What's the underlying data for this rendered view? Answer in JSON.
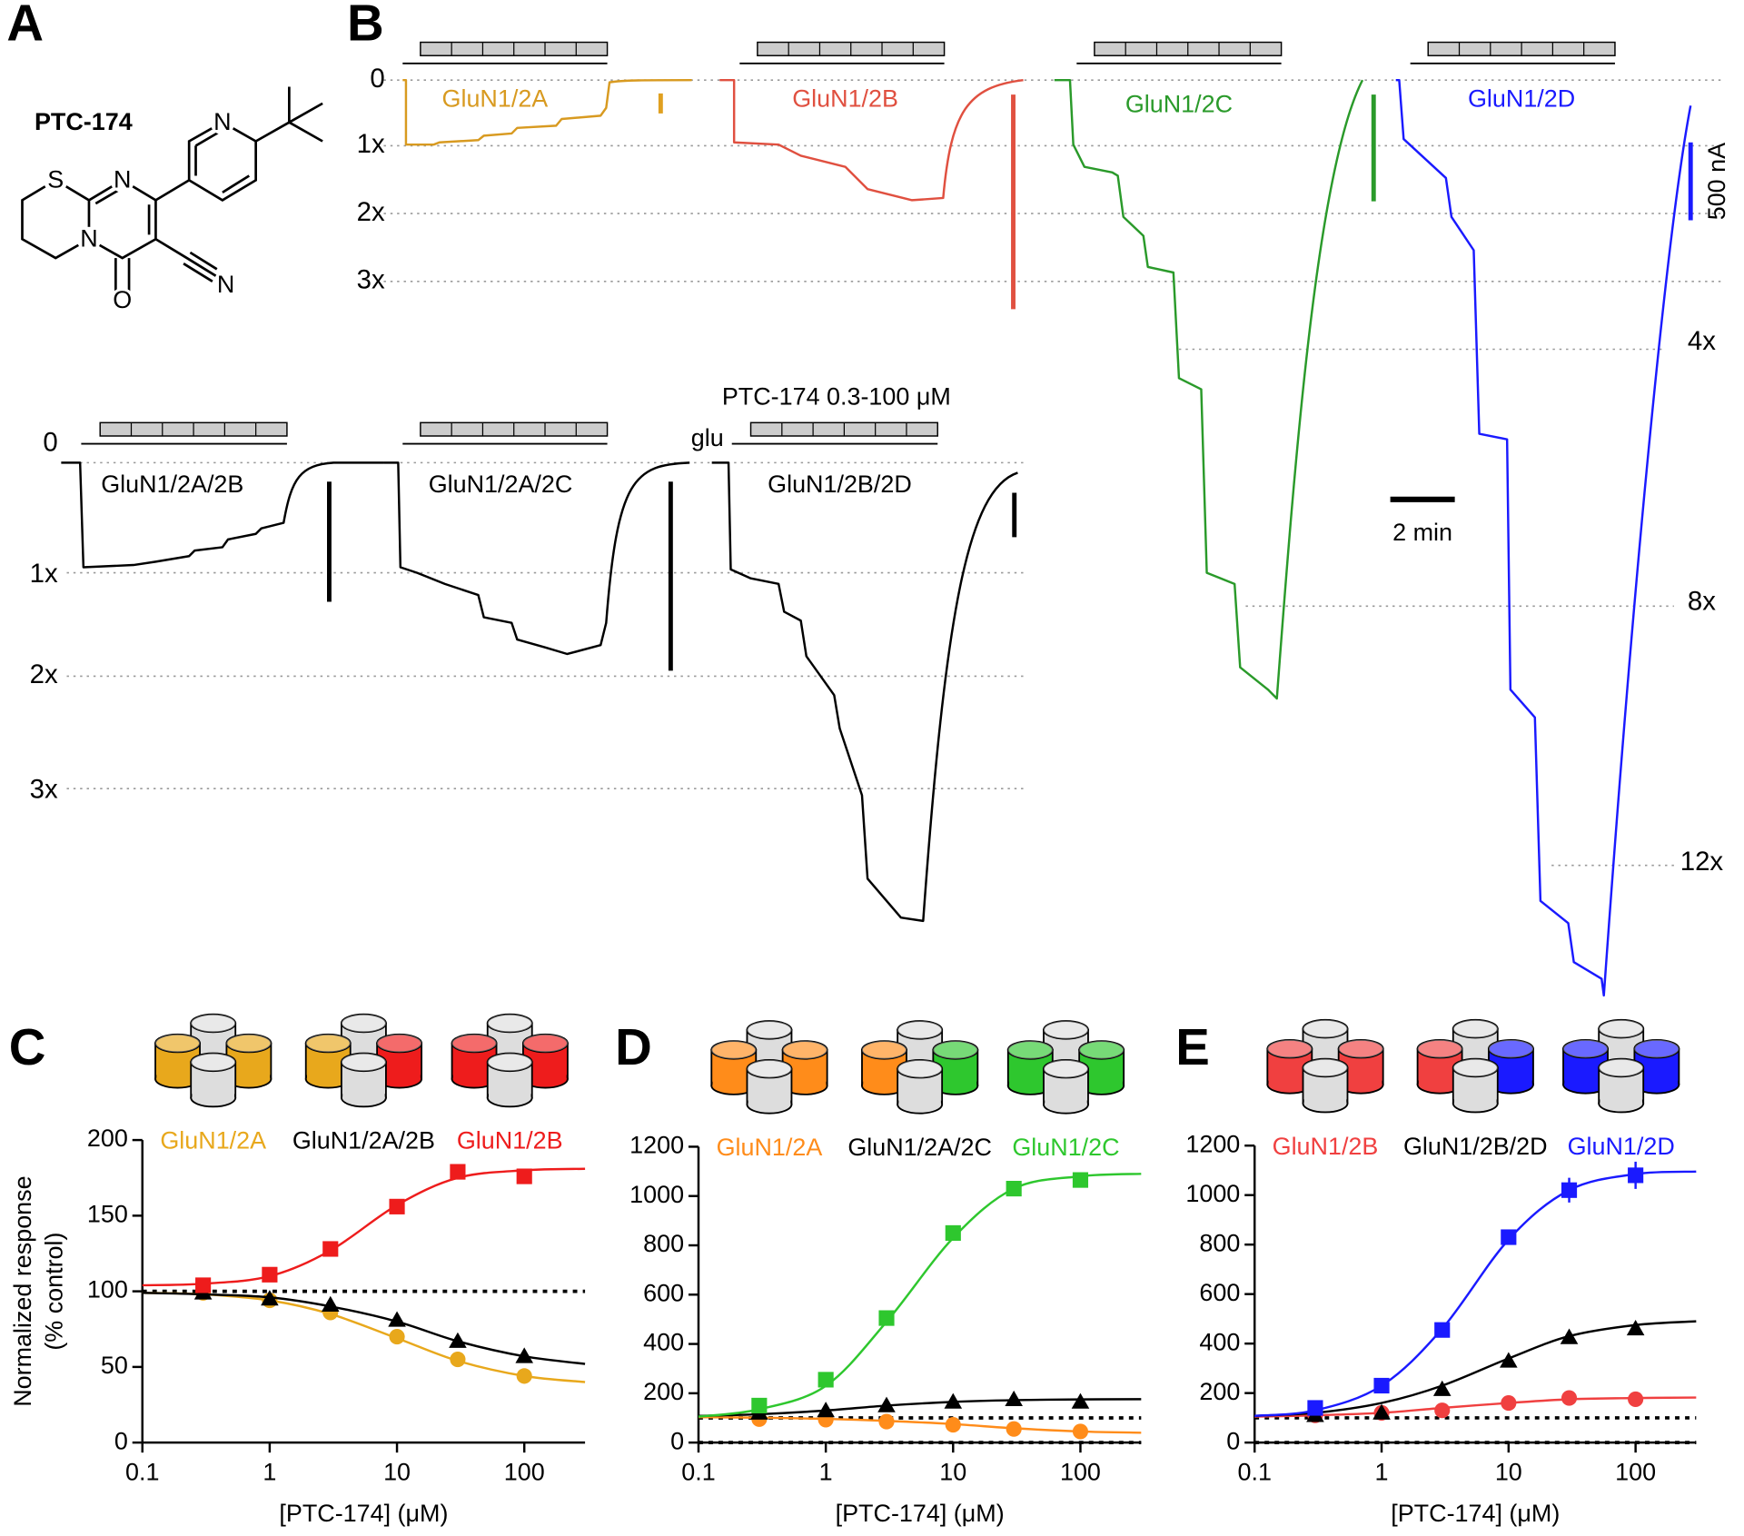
{
  "panel_a": {
    "label": "A",
    "compound": "PTC-174",
    "atoms": [
      "S",
      "N",
      "N",
      "O",
      "N",
      "N"
    ]
  },
  "panel_b": {
    "label": "B",
    "top": {
      "levels": [
        "0",
        "1x",
        "2x",
        "3x"
      ],
      "right_levels": [
        "4x",
        "8x",
        "12x"
      ],
      "receptors": [
        "GluN1/2A",
        "GluN1/2B",
        "GluN1/2C",
        "GluN1/2D"
      ],
      "scale_current": "500 nA",
      "scale_time": "2 min"
    },
    "bottom": {
      "levels": [
        "0",
        "1x",
        "2x",
        "3x"
      ],
      "receptors": [
        "GluN1/2A/2B",
        "GluN1/2A/2C",
        "GluN1/2B/2D"
      ],
      "application": "PTC-174 0.3-100 μM",
      "agonist": "glu"
    }
  },
  "chart_data": [
    {
      "type": "scatter",
      "panel": "C",
      "xlabel": "[PTC-174] (μM)",
      "ylabel": [
        "Normalized response",
        "(% control)"
      ],
      "xscale": "log",
      "x": [
        0.3,
        1,
        3,
        10,
        30,
        100
      ],
      "xlim": [
        0.1,
        300
      ],
      "xticks": [
        0.1,
        1,
        10,
        100
      ],
      "ylim": [
        0,
        200
      ],
      "yticks": [
        0,
        50,
        100,
        150,
        200
      ],
      "reference_lines": [
        100
      ],
      "curve_x": [
        0.1,
        0.3,
        1,
        3,
        10,
        30,
        100,
        300
      ],
      "series": [
        {
          "name": "GluN1/2A",
          "color": "#e8a81c",
          "marker": "circle",
          "values": [
            99,
            94,
            86,
            70,
            55,
            44
          ],
          "curve_values": [
            99,
            98,
            94,
            85,
            69,
            54,
            44,
            40
          ]
        },
        {
          "name": "GluN1/2A/2B",
          "color": "#000000",
          "marker": "triangle",
          "values": [
            99,
            95,
            91,
            81,
            67,
            57
          ],
          "curve_values": [
            99,
            98,
            96,
            90,
            80,
            67,
            57,
            52
          ]
        },
        {
          "name": "GluN1/2B",
          "color": "#ee1c1c",
          "marker": "square",
          "values": [
            104,
            111,
            128,
            156,
            179,
            176
          ],
          "curve_values": [
            104,
            105,
            110,
            127,
            157,
            175,
            180,
            181
          ]
        }
      ]
    },
    {
      "type": "scatter",
      "panel": "D",
      "xlabel": "[PTC-174] (μM)",
      "xscale": "log",
      "x": [
        0.3,
        1,
        3,
        10,
        30,
        100
      ],
      "xlim": [
        0.1,
        300
      ],
      "xticks": [
        0.1,
        1,
        10,
        100
      ],
      "ylim": [
        0,
        1200
      ],
      "yticks": [
        0,
        200,
        400,
        600,
        800,
        1000,
        1200
      ],
      "reference_lines": [
        0,
        100
      ],
      "curve_x": [
        0.1,
        0.3,
        1,
        3,
        10,
        30,
        100,
        300
      ],
      "series": [
        {
          "name": "GluN1/2A",
          "color": "#ff8c1a",
          "marker": "circle",
          "values": [
            95,
            93,
            85,
            72,
            55,
            45
          ],
          "curve_values": [
            103,
            101,
            96,
            88,
            75,
            58,
            45,
            40
          ]
        },
        {
          "name": "GluN1/2A/2C",
          "color": "#000000",
          "marker": "triangle",
          "values": [
            120,
            130,
            150,
            165,
            175,
            165
          ],
          "curve_values": [
            108,
            115,
            130,
            150,
            165,
            172,
            175,
            176
          ]
        },
        {
          "name": "GluN1/2C",
          "color": "#2ec72e",
          "marker": "square",
          "values": [
            150,
            255,
            505,
            850,
            1030,
            1065
          ],
          "curve_values": [
            105,
            135,
            230,
            490,
            830,
            1030,
            1080,
            1090
          ]
        }
      ]
    },
    {
      "type": "scatter",
      "panel": "E",
      "xlabel": "[PTC-174] (μM)",
      "xscale": "log",
      "x": [
        0.3,
        1,
        3,
        10,
        30,
        100
      ],
      "xlim": [
        0.1,
        300
      ],
      "xticks": [
        0.1,
        1,
        10,
        100
      ],
      "ylim": [
        0,
        1200
      ],
      "yticks": [
        0,
        200,
        400,
        600,
        800,
        1000,
        1200
      ],
      "reference_lines": [
        0,
        100
      ],
      "curve_x": [
        0.1,
        0.3,
        1,
        3,
        10,
        30,
        100,
        300
      ],
      "series": [
        {
          "name": "GluN1/2B",
          "color": "#f04040",
          "marker": "circle",
          "values": [
            110,
            120,
            130,
            160,
            180,
            175
          ],
          "curve_values": [
            105,
            110,
            120,
            140,
            160,
            175,
            180,
            182
          ]
        },
        {
          "name": "GluN1/2B/2D",
          "color": "#000000",
          "marker": "triangle",
          "values": [
            110,
            120,
            215,
            330,
            425,
            460
          ],
          "curve_values": [
            108,
            120,
            160,
            230,
            340,
            430,
            475,
            490
          ]
        },
        {
          "name": "GluN1/2D",
          "color": "#1a1aff",
          "marker": "square",
          "values": [
            140,
            230,
            455,
            830,
            1020,
            1080
          ],
          "errors": [
            20,
            15,
            20,
            30,
            50,
            55
          ],
          "curve_values": [
            108,
            130,
            230,
            460,
            820,
            1020,
            1085,
            1095
          ]
        }
      ]
    }
  ]
}
